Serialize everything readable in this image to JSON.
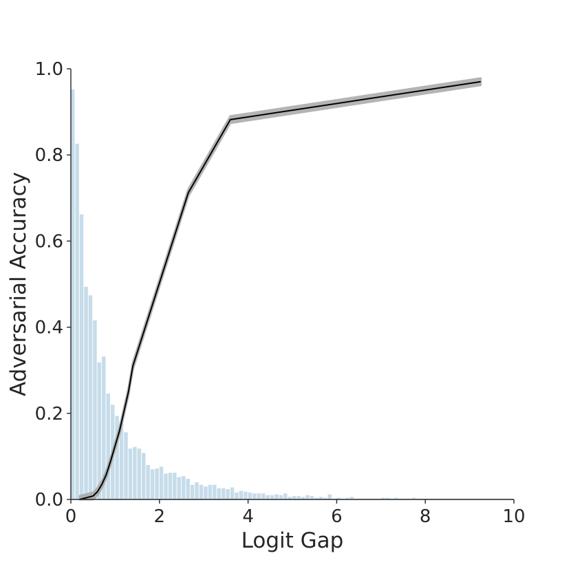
{
  "chart_data": {
    "type": "bar",
    "title": "",
    "xlabel": "Logit Gap",
    "ylabel": "Adversarial Accuracy",
    "xlim": [
      0,
      10
    ],
    "ylim": [
      0,
      1.0
    ],
    "x_ticks": [
      "0",
      "2",
      "4",
      "6",
      "8",
      "10"
    ],
    "y_ticks": [
      "0.0",
      "0.2",
      "0.4",
      "0.6",
      "0.8",
      "1.0"
    ],
    "grid": false,
    "legend": "none",
    "histogram": {
      "bin_width": 0.1,
      "bin_start": 0.0,
      "color": "#c6dcea",
      "values": [
        0.952,
        0.826,
        0.662,
        0.494,
        0.474,
        0.416,
        0.318,
        0.332,
        0.246,
        0.22,
        0.194,
        0.178,
        0.156,
        0.118,
        0.122,
        0.118,
        0.108,
        0.08,
        0.07,
        0.072,
        0.076,
        0.06,
        0.062,
        0.062,
        0.052,
        0.054,
        0.048,
        0.034,
        0.04,
        0.034,
        0.03,
        0.034,
        0.034,
        0.026,
        0.026,
        0.024,
        0.028,
        0.016,
        0.02,
        0.018,
        0.016,
        0.014,
        0.014,
        0.014,
        0.01,
        0.01,
        0.012,
        0.01,
        0.014,
        0.006,
        0.008,
        0.008,
        0.006,
        0.01,
        0.008,
        0.004,
        0.006,
        0.004,
        0.012,
        0.002,
        0.004,
        0.002,
        0.004,
        0.006,
        0.002,
        0.002,
        0.002,
        0.002,
        0.002,
        0.002,
        0.004,
        0.004,
        0.002,
        0.004,
        0.002,
        0.002,
        0.002,
        0.004,
        0.002,
        0.002,
        0.002,
        0.002,
        0.002,
        0.002,
        0.002,
        0.002,
        0.002,
        0.002,
        0.002,
        0.002,
        0.002,
        0.002,
        0.002,
        0.002,
        0.002,
        0.002,
        0.002,
        0.002,
        0.002,
        0.002
      ]
    },
    "series": [
      {
        "type": "line",
        "color": "#000000",
        "band_color": "#a8a8a8",
        "band_halfwidth": 0.008,
        "x": [
          0.2,
          0.5,
          0.6,
          0.7,
          0.8,
          0.9,
          1.0,
          1.1,
          1.2,
          1.3,
          1.4,
          2.65,
          3.6,
          9.25
        ],
        "y": [
          0.0,
          0.008,
          0.018,
          0.035,
          0.058,
          0.09,
          0.125,
          0.16,
          0.205,
          0.25,
          0.31,
          0.712,
          0.882,
          0.97
        ]
      }
    ]
  }
}
